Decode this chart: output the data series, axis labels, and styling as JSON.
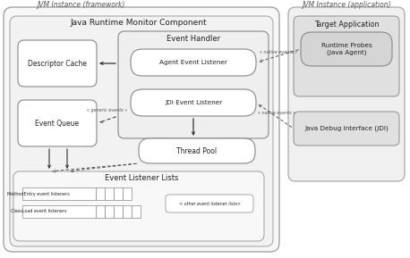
{
  "title_framework": "JVM Instance (framework)",
  "title_application": "JVM Instance (application)",
  "label_jrmc": "Java Runtime Monitor Component",
  "label_event_handler": "Event Handler",
  "label_descriptor_cache": "Descriptor Cache",
  "label_event_queue": "Event Queue",
  "label_agent_listener": "Agent Event Listener",
  "label_jdi_listener": "JDI Event Listener",
  "label_thread_pool": "Thread Pool",
  "label_ell": "Event Listener Lists",
  "label_target_app": "Target Application",
  "label_runtime_probes": "Runtime Probes\n(Java Agent)",
  "label_jdi": "Java Debug Interface (JDI)",
  "label_method_listeners": "MethodEntry event listeners",
  "label_class_listeners": "ClassLoad event listeners",
  "label_other_lists": "< other event listener lists>",
  "label_native1": "« native events »",
  "label_native2": "« native events »",
  "label_generic": "« generic events »"
}
